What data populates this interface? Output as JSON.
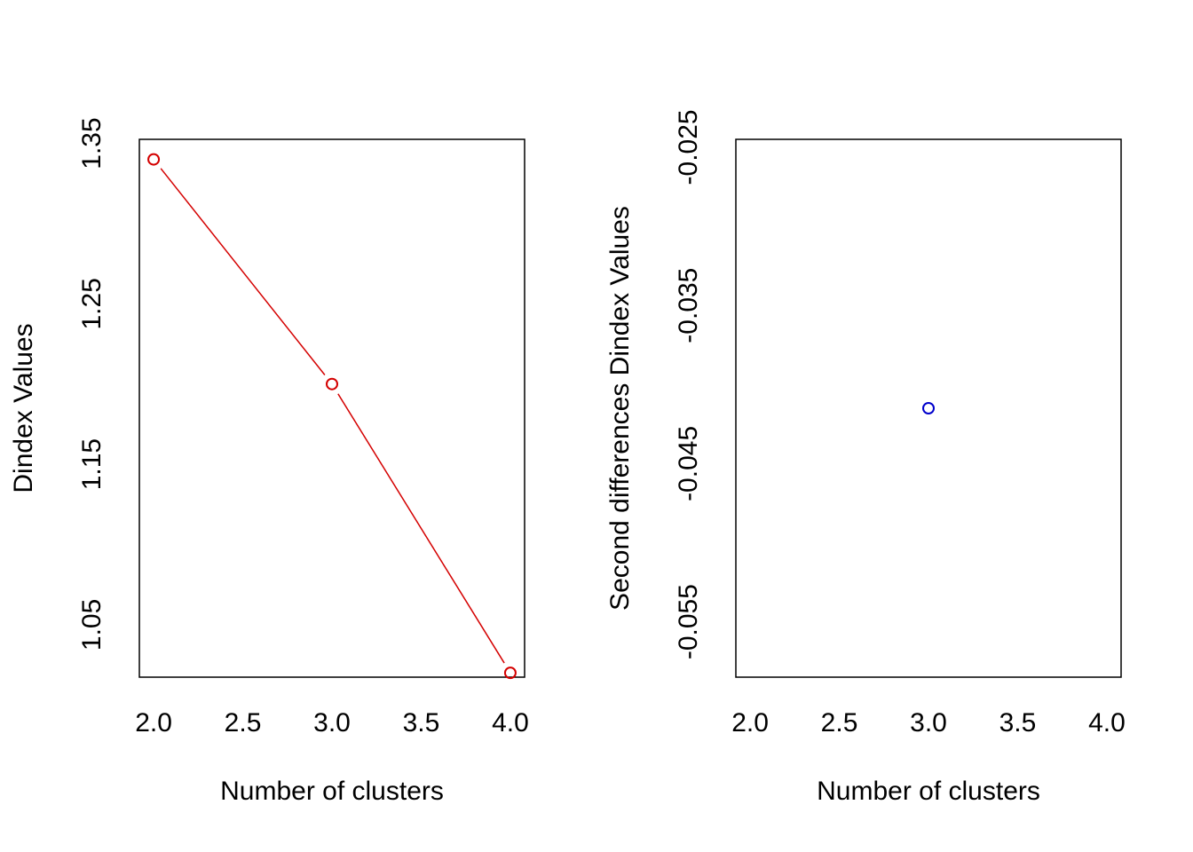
{
  "chart_data": [
    {
      "type": "line",
      "title": "",
      "xlabel": "Number of clusters",
      "ylabel": "Dindex Values",
      "xlim": [
        1.92,
        4.08
      ],
      "ylim": [
        1.0173,
        1.3525
      ],
      "xticks": [
        "2.0",
        "2.5",
        "3.0",
        "3.5",
        "4.0"
      ],
      "yticks": [
        "1.05",
        "1.15",
        "1.25",
        "1.35"
      ],
      "grid": false,
      "legend": "none",
      "series": [
        {
          "x": [
            2,
            3,
            4
          ],
          "y": [
            1.34,
            1.2,
            1.02
          ],
          "color": "#d40000",
          "marker": "open-circle",
          "line": true
        }
      ]
    },
    {
      "type": "scatter",
      "title": "",
      "xlabel": "Number of clusters",
      "ylabel": "Second differences Dindex Values",
      "xlim": [
        1.92,
        4.08
      ],
      "ylim": [
        -0.0585,
        -0.0245
      ],
      "xticks": [
        "2.0",
        "2.5",
        "3.0",
        "3.5",
        "4.0"
      ],
      "yticks": [
        "-0.025",
        "-0.035",
        "-0.045",
        "-0.055"
      ],
      "grid": false,
      "legend": "none",
      "series": [
        {
          "x": [
            3
          ],
          "y": [
            -0.0415
          ],
          "color": "#0000cc",
          "marker": "open-circle",
          "line": false
        }
      ]
    }
  ]
}
